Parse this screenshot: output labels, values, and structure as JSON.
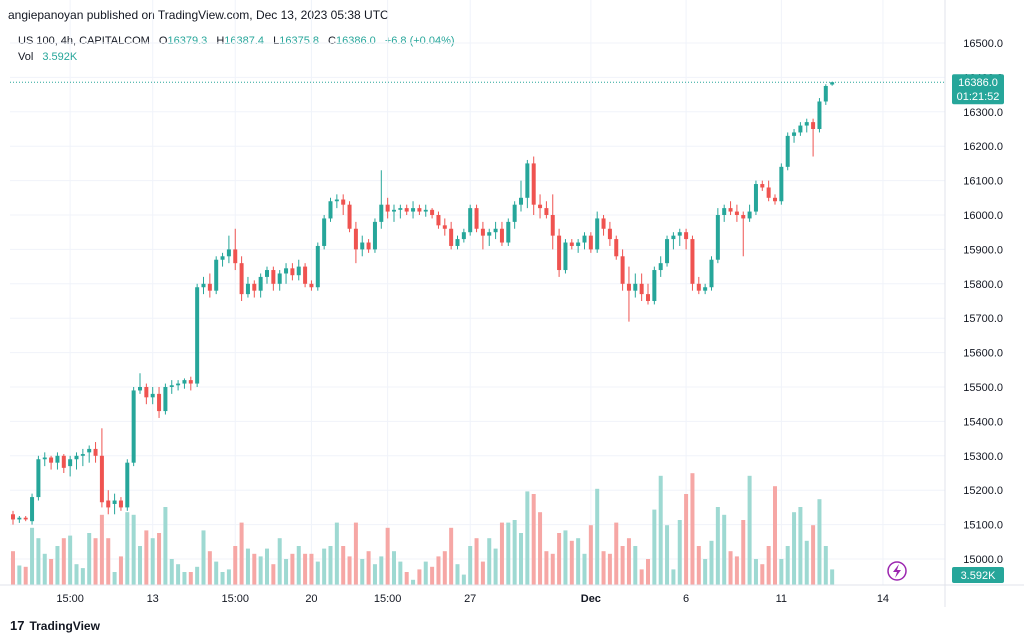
{
  "header": {
    "publisher_line": "angiepanoyan published on TradingView.com, Dec 13, 2023 05:38 UTC"
  },
  "legend": {
    "symbol": "US 100, 4h, CAPITALCOM",
    "o_label": "O",
    "o_value": "16379.3",
    "h_label": "H",
    "h_value": "16387.4",
    "l_label": "L",
    "l_value": "16375.8",
    "c_label": "C",
    "c_value": "16386.0",
    "change": "+6.8 (+0.04%)",
    "vol_label": "Vol",
    "vol_value": "3.592K"
  },
  "price_tag": {
    "price": "16386.0",
    "countdown": "01:21:52"
  },
  "volume_tag": "3.592K",
  "footer": {
    "brand": "TradingView",
    "logo_mark": "17"
  },
  "colors": {
    "up": "#26a69a",
    "down": "#ef5350",
    "up_vol": "#9ed9d2",
    "down_vol": "#f6a7a5",
    "grid": "#f0f3fa",
    "text": "#131722",
    "lightning": "#9c27b0"
  },
  "chart_data": {
    "type": "candlestick",
    "y_ticks": [
      "16500.0",
      "16400.0",
      "16300.0",
      "16200.0",
      "16100.0",
      "16000.0",
      "15900.0",
      "15800.0",
      "15700.0",
      "15600.0",
      "15500.0",
      "15400.0",
      "15300.0",
      "15200.0",
      "15100.0",
      "15000.0"
    ],
    "ylim": [
      14930,
      16550
    ],
    "x_ticks": [
      {
        "label": "15:00",
        "i": 9
      },
      {
        "label": "13",
        "i": 22
      },
      {
        "label": "15:00",
        "i": 35
      },
      {
        "label": "20",
        "i": 47
      },
      {
        "label": "15:00",
        "i": 59
      },
      {
        "label": "27",
        "i": 72
      },
      {
        "label": "Dec",
        "i": 91
      },
      {
        "label": "6",
        "i": 106
      },
      {
        "label": "11",
        "i": 121
      },
      {
        "label": "14",
        "i": 137
      }
    ],
    "candles": [
      [
        15130,
        15140,
        15100,
        15115,
        0.26
      ],
      [
        15115,
        15125,
        15105,
        15120,
        0.15
      ],
      [
        15120,
        15125,
        15110,
        15115,
        0.14
      ],
      [
        15110,
        15190,
        15100,
        15180,
        0.44
      ],
      [
        15180,
        15300,
        15170,
        15290,
        0.36
      ],
      [
        15290,
        15310,
        15270,
        15295,
        0.24
      ],
      [
        15295,
        15300,
        15260,
        15280,
        0.2
      ],
      [
        15280,
        15310,
        15260,
        15300,
        0.3
      ],
      [
        15300,
        15305,
        15250,
        15265,
        0.36
      ],
      [
        15270,
        15300,
        15240,
        15290,
        0.38
      ],
      [
        15290,
        15310,
        15260,
        15300,
        0.16
      ],
      [
        15300,
        15320,
        15270,
        15305,
        0.13
      ],
      [
        15310,
        15330,
        15280,
        15320,
        0.4
      ],
      [
        15320,
        15340,
        15280,
        15300,
        0.36
      ],
      [
        15300,
        15380,
        15150,
        15165,
        0.54
      ],
      [
        15170,
        15200,
        15130,
        15150,
        0.36
      ],
      [
        15160,
        15190,
        15130,
        15170,
        0.1
      ],
      [
        15170,
        15180,
        15140,
        15150,
        0.22
      ],
      [
        15150,
        15290,
        15140,
        15280,
        0.56
      ],
      [
        15280,
        15500,
        15270,
        15490,
        0.54
      ],
      [
        15490,
        15540,
        15480,
        15500,
        0.3
      ],
      [
        15500,
        15510,
        15450,
        15470,
        0.42
      ],
      [
        15470,
        15500,
        15450,
        15480,
        0.36
      ],
      [
        15480,
        15500,
        15410,
        15430,
        0.4
      ],
      [
        15430,
        15510,
        15420,
        15500,
        0.6
      ],
      [
        15500,
        15520,
        15480,
        15505,
        0.2
      ],
      [
        15505,
        15520,
        15490,
        15510,
        0.16
      ],
      [
        15510,
        15525,
        15495,
        15520,
        0.1
      ],
      [
        15520,
        15530,
        15490,
        15510,
        0.1
      ],
      [
        15510,
        15800,
        15500,
        15790,
        0.14
      ],
      [
        15790,
        15820,
        15770,
        15800,
        0.42
      ],
      [
        15800,
        15830,
        15760,
        15780,
        0.26
      ],
      [
        15780,
        15880,
        15770,
        15870,
        0.18
      ],
      [
        15870,
        15890,
        15850,
        15880,
        0.1
      ],
      [
        15880,
        15940,
        15860,
        15900,
        0.12
      ],
      [
        15900,
        15960,
        15840,
        15860,
        0.3
      ],
      [
        15860,
        15880,
        15750,
        15770,
        0.48
      ],
      [
        15770,
        15820,
        15760,
        15800,
        0.28
      ],
      [
        15800,
        15810,
        15760,
        15780,
        0.24
      ],
      [
        15780,
        15830,
        15760,
        15820,
        0.22
      ],
      [
        15820,
        15850,
        15800,
        15840,
        0.28
      ],
      [
        15840,
        15850,
        15780,
        15800,
        0.16
      ],
      [
        15800,
        15840,
        15780,
        15830,
        0.36
      ],
      [
        15830,
        15860,
        15800,
        15845,
        0.2
      ],
      [
        15845,
        15860,
        15810,
        15825,
        0.24
      ],
      [
        15825,
        15870,
        15810,
        15850,
        0.3
      ],
      [
        15850,
        15860,
        15790,
        15800,
        0.24
      ],
      [
        15800,
        15810,
        15780,
        15790,
        0.24
      ],
      [
        15790,
        15920,
        15780,
        15910,
        0.18
      ],
      [
        15910,
        16000,
        15900,
        15990,
        0.28
      ],
      [
        15990,
        16050,
        15980,
        16040,
        0.3
      ],
      [
        16040,
        16060,
        16020,
        16045,
        0.48
      ],
      [
        16045,
        16060,
        16000,
        16030,
        0.3
      ],
      [
        16030,
        16040,
        15950,
        15960,
        0.22
      ],
      [
        15960,
        15980,
        15860,
        15900,
        0.48
      ],
      [
        15900,
        15940,
        15880,
        15920,
        0.2
      ],
      [
        15920,
        15930,
        15890,
        15900,
        0.26
      ],
      [
        15900,
        15990,
        15890,
        15980,
        0.16
      ],
      [
        15980,
        16130,
        15960,
        16030,
        0.22
      ],
      [
        16030,
        16050,
        15990,
        16010,
        0.44
      ],
      [
        16010,
        16030,
        15980,
        16015,
        0.26
      ],
      [
        16015,
        16030,
        15990,
        16020,
        0.18
      ],
      [
        16020,
        16030,
        16000,
        16010,
        0.1
      ],
      [
        16010,
        16040,
        15990,
        16020,
        0.04
      ],
      [
        16020,
        16030,
        16000,
        16010,
        0.12
      ],
      [
        16010,
        16030,
        15995,
        16015,
        0.18
      ],
      [
        16015,
        16020,
        15990,
        16000,
        0.14
      ],
      [
        16000,
        16010,
        15960,
        15970,
        0.22
      ],
      [
        15970,
        15990,
        15940,
        15960,
        0.26
      ],
      [
        15960,
        15980,
        15900,
        15910,
        0.44
      ],
      [
        15910,
        15940,
        15900,
        15930,
        0.16
      ],
      [
        15930,
        15960,
        15920,
        15950,
        0.08
      ],
      [
        15950,
        16030,
        15940,
        16020,
        0.3
      ],
      [
        16020,
        16030,
        15950,
        15960,
        0.36
      ],
      [
        15960,
        15980,
        15900,
        15940,
        0.18
      ],
      [
        15940,
        15960,
        15910,
        15950,
        0.36
      ],
      [
        15950,
        15980,
        15930,
        15960,
        0.28
      ],
      [
        15960,
        15980,
        15910,
        15920,
        0.48
      ],
      [
        15920,
        15990,
        15910,
        15980,
        0.48
      ],
      [
        15980,
        16040,
        15960,
        16030,
        0.5
      ],
      [
        16030,
        16100,
        16010,
        16050,
        0.4
      ],
      [
        16050,
        16160,
        16020,
        16150,
        0.72
      ],
      [
        16150,
        16170,
        16000,
        16030,
        0.7
      ],
      [
        16030,
        16060,
        15990,
        16020,
        0.56
      ],
      [
        16020,
        16040,
        15990,
        16000,
        0.26
      ],
      [
        16000,
        16060,
        15900,
        15940,
        0.24
      ],
      [
        15940,
        15960,
        15820,
        15840,
        0.4
      ],
      [
        15840,
        15930,
        15830,
        15920,
        0.42
      ],
      [
        15920,
        15930,
        15900,
        15910,
        0.34
      ],
      [
        15910,
        15930,
        15890,
        15920,
        0.36
      ],
      [
        15920,
        15950,
        15900,
        15940,
        0.24
      ],
      [
        15940,
        15950,
        15890,
        15900,
        0.46
      ],
      [
        15900,
        16010,
        15890,
        15990,
        0.74
      ],
      [
        15990,
        16000,
        15940,
        15960,
        0.26
      ],
      [
        15960,
        15980,
        15910,
        15930,
        0.24
      ],
      [
        15930,
        15940,
        15870,
        15880,
        0.48
      ],
      [
        15880,
        15900,
        15780,
        15800,
        0.3
      ],
      [
        15800,
        15850,
        15690,
        15780,
        0.36
      ],
      [
        15780,
        15830,
        15760,
        15800,
        0.3
      ],
      [
        15800,
        15830,
        15750,
        15770,
        0.12
      ],
      [
        15770,
        15800,
        15740,
        15750,
        0.2
      ],
      [
        15750,
        15850,
        15740,
        15840,
        0.58
      ],
      [
        15840,
        15880,
        15820,
        15860,
        0.84
      ],
      [
        15860,
        15940,
        15850,
        15930,
        0.46
      ],
      [
        15930,
        15950,
        15900,
        15940,
        0.12
      ],
      [
        15940,
        15960,
        15910,
        15950,
        0.5
      ],
      [
        15950,
        15960,
        15900,
        15930,
        0.7
      ],
      [
        15930,
        15940,
        15780,
        15800,
        0.86
      ],
      [
        15800,
        15820,
        15770,
        15780,
        0.3
      ],
      [
        15780,
        15800,
        15770,
        15790,
        0.2
      ],
      [
        15790,
        15880,
        15780,
        15870,
        0.34
      ],
      [
        15870,
        16020,
        15860,
        16000,
        0.6
      ],
      [
        16000,
        16030,
        15980,
        16020,
        0.54
      ],
      [
        16020,
        16040,
        16000,
        16010,
        0.26
      ],
      [
        16010,
        16030,
        15980,
        16000,
        0.22
      ],
      [
        16000,
        16010,
        15880,
        15990,
        0.5
      ],
      [
        15990,
        16030,
        15980,
        16010,
        0.84
      ],
      [
        16010,
        16100,
        16000,
        16090,
        0.2
      ],
      [
        16090,
        16100,
        16070,
        16080,
        0.16
      ],
      [
        16080,
        16100,
        16040,
        16050,
        0.3
      ],
      [
        16050,
        16060,
        16030,
        16040,
        0.76
      ],
      [
        16040,
        16150,
        16030,
        16140,
        0.2
      ],
      [
        16140,
        16240,
        16130,
        16230,
        0.3
      ],
      [
        16230,
        16250,
        16210,
        16240,
        0.56
      ],
      [
        16240,
        16270,
        16230,
        16260,
        0.6
      ],
      [
        16260,
        16280,
        16240,
        16270,
        0.34
      ],
      [
        16270,
        16280,
        16170,
        16250,
        0.46
      ],
      [
        16250,
        16340,
        16240,
        16330,
        0.66
      ],
      [
        16330,
        16380,
        16320,
        16375,
        0.3
      ],
      [
        16379.3,
        16387.4,
        16375.8,
        16386,
        0.12
      ]
    ]
  }
}
